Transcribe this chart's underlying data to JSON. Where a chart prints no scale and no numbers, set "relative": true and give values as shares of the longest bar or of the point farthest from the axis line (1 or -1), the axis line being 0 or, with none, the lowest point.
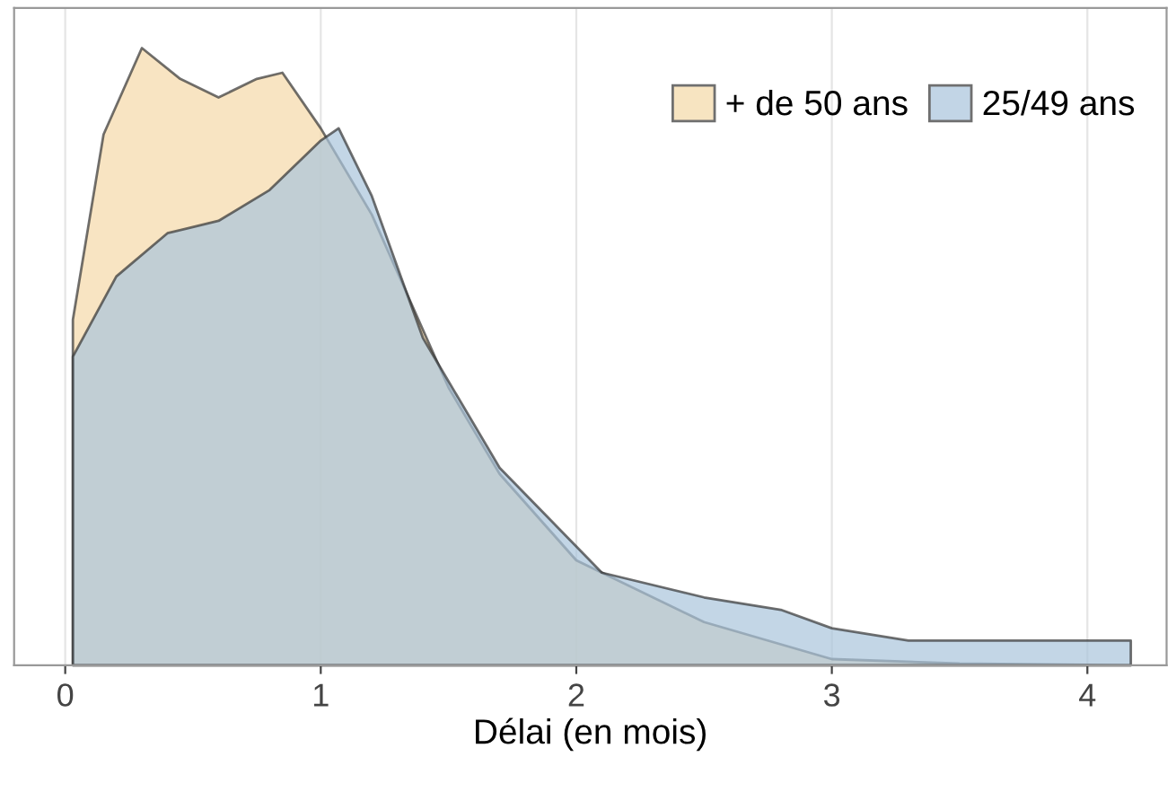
{
  "chart_data": {
    "type": "area",
    "relative": true,
    "xlabel": "Délai (en mois)",
    "xlim": [
      -0.2,
      4.31
    ],
    "xticks": [
      0,
      1,
      2,
      3,
      4
    ],
    "grid": "x",
    "legend": "top right",
    "series": [
      {
        "name": "+ de 50 ans",
        "color": "#f5d9a8",
        "x": [
          0.03,
          0.15,
          0.3,
          0.45,
          0.6,
          0.75,
          0.85,
          1.0,
          1.2,
          1.5,
          1.7,
          2.0,
          2.1,
          2.5,
          3.0,
          3.5,
          4.17
        ],
        "values": [
          0.56,
          0.86,
          1,
          0.95,
          0.92,
          0.95,
          0.96,
          0.87,
          0.73,
          0.45,
          0.31,
          0.17,
          0.15,
          0.07,
          0.01,
          0.003,
          0
        ]
      },
      {
        "name": "25/49 ans",
        "color": "#a9c4dc",
        "x": [
          0.03,
          0.2,
          0.4,
          0.6,
          0.8,
          1.0,
          1.07,
          1.2,
          1.4,
          1.7,
          2.1,
          2.5,
          2.8,
          3.0,
          3.3,
          3.6,
          4.0,
          4.17
        ],
        "values": [
          0.5,
          0.63,
          0.7,
          0.72,
          0.77,
          0.85,
          0.87,
          0.76,
          0.53,
          0.32,
          0.15,
          0.11,
          0.09,
          0.06,
          0.04,
          0.04,
          0.04,
          0.04
        ]
      }
    ]
  }
}
